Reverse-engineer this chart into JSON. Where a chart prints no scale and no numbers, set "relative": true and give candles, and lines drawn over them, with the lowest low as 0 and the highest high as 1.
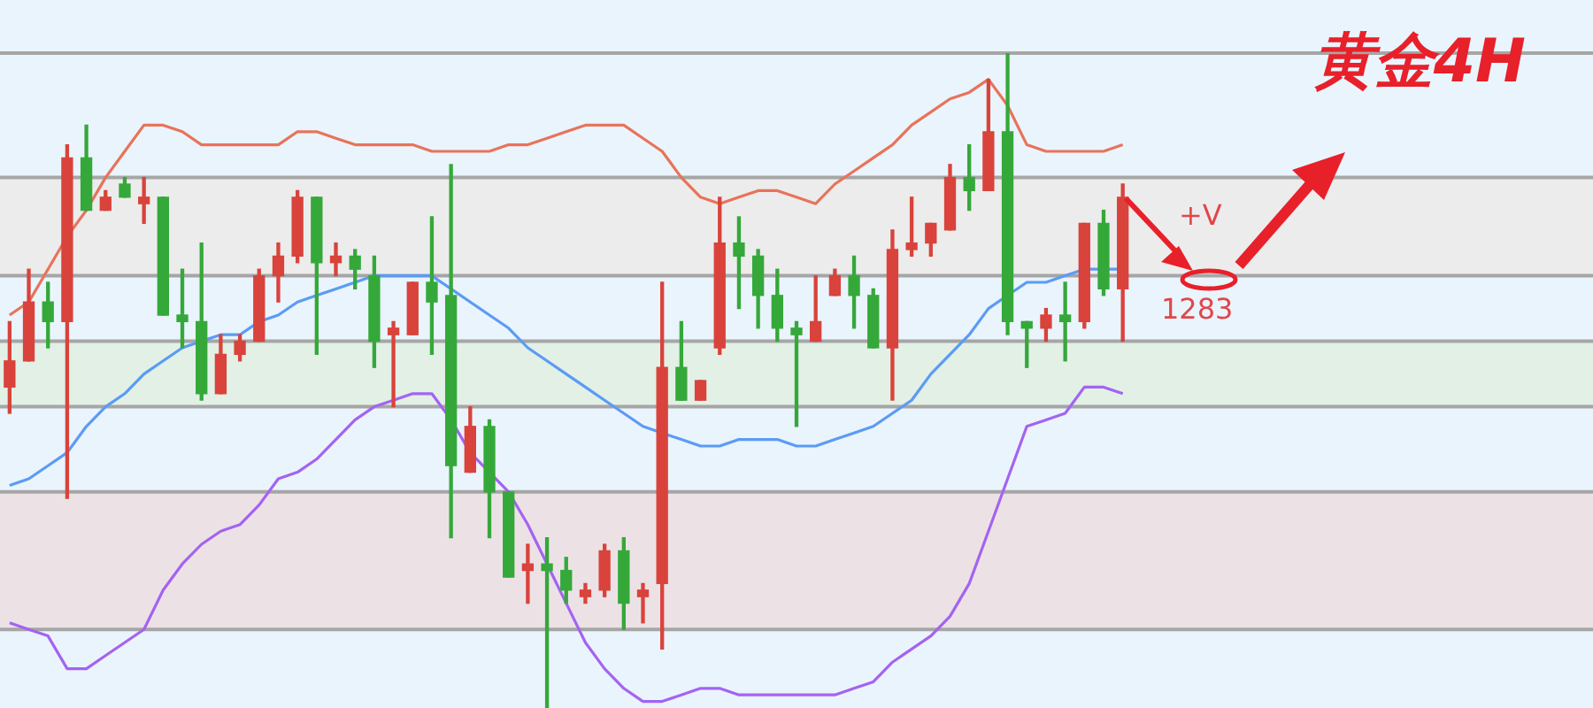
{
  "chart_data": {
    "type": "candlestick",
    "title": "黄金4H",
    "relative": true,
    "legend": false,
    "marker": "none",
    "line_style": "solid",
    "categories": [
      null,
      null,
      null,
      null,
      null,
      null,
      null,
      null,
      null,
      null,
      null,
      null,
      null,
      null,
      null,
      null,
      null,
      null,
      null,
      null,
      null,
      null,
      null,
      null,
      null,
      null,
      null,
      null,
      null,
      null,
      null,
      null,
      null,
      null,
      null,
      null,
      null,
      null,
      null,
      null,
      null,
      null,
      null,
      null,
      null,
      null,
      null,
      null,
      null,
      null,
      null,
      null,
      null,
      null,
      null,
      null,
      null,
      null,
      null,
      null,
      null,
      null,
      null,
      null,
      null,
      null,
      null,
      null,
      null,
      null,
      null,
      null,
      null,
      null,
      null,
      null,
      null,
      null,
      null,
      null,
      null,
      null,
      null
    ],
    "ohlc": [
      [
        0.49,
        0.59,
        0.45,
        0.53
      ],
      [
        0.53,
        0.67,
        0.53,
        0.62
      ],
      [
        0.62,
        0.65,
        0.55,
        0.59
      ],
      [
        0.59,
        0.86,
        0.32,
        0.84
      ],
      [
        0.84,
        0.89,
        0.76,
        0.76
      ],
      [
        0.76,
        0.79,
        0.76,
        0.78
      ],
      [
        0.8,
        0.81,
        0.78,
        0.78
      ],
      [
        0.77,
        0.81,
        0.74,
        0.78
      ],
      [
        0.78,
        0.78,
        0.6,
        0.6
      ],
      [
        0.6,
        0.67,
        0.55,
        0.59
      ],
      [
        0.59,
        0.71,
        0.47,
        0.48
      ],
      [
        0.48,
        0.57,
        0.48,
        0.54
      ],
      [
        0.54,
        0.57,
        0.53,
        0.56
      ],
      [
        0.56,
        0.67,
        0.56,
        0.66
      ],
      [
        0.66,
        0.71,
        0.62,
        0.69
      ],
      [
        0.69,
        0.79,
        0.68,
        0.78
      ],
      [
        0.78,
        0.78,
        0.54,
        0.68
      ],
      [
        0.68,
        0.71,
        0.66,
        0.69
      ],
      [
        0.69,
        0.7,
        0.64,
        0.67
      ],
      [
        0.66,
        0.69,
        0.52,
        0.56
      ],
      [
        0.57,
        0.59,
        0.46,
        0.58
      ],
      [
        0.57,
        0.65,
        0.57,
        0.65
      ],
      [
        0.65,
        0.75,
        0.54,
        0.62
      ],
      [
        0.63,
        0.83,
        0.26,
        0.37
      ],
      [
        0.36,
        0.46,
        0.36,
        0.43
      ],
      [
        0.43,
        0.44,
        0.26,
        0.33
      ],
      [
        0.33,
        0.33,
        0.2,
        0.2
      ],
      [
        0.21,
        0.25,
        0.16,
        0.22
      ],
      [
        0.22,
        0.26,
        0,
        0.21
      ],
      [
        0.21,
        0.23,
        0.16,
        0.18
      ],
      [
        0.17,
        0.19,
        0.16,
        0.18
      ],
      [
        0.18,
        0.25,
        0.17,
        0.24
      ],
      [
        0.24,
        0.26,
        0.12,
        0.16
      ],
      [
        0.17,
        0.19,
        0.13,
        0.18
      ],
      [
        0.19,
        0.65,
        0.09,
        0.52
      ],
      [
        0.52,
        0.59,
        0.47,
        0.47
      ],
      [
        0.47,
        0.5,
        0.47,
        0.5
      ],
      [
        0.55,
        0.78,
        0.54,
        0.71
      ],
      [
        0.71,
        0.75,
        0.61,
        0.69
      ],
      [
        0.69,
        0.7,
        0.58,
        0.63
      ],
      [
        0.63,
        0.67,
        0.56,
        0.58
      ],
      [
        0.58,
        0.59,
        0.43,
        0.57
      ],
      [
        0.56,
        0.66,
        0.56,
        0.59
      ],
      [
        0.63,
        0.67,
        0.63,
        0.66
      ],
      [
        0.66,
        0.69,
        0.58,
        0.63
      ],
      [
        0.63,
        0.64,
        0.55,
        0.55
      ],
      [
        0.55,
        0.73,
        0.47,
        0.7
      ],
      [
        0.7,
        0.78,
        0.69,
        0.71
      ],
      [
        0.71,
        0.74,
        0.69,
        0.74
      ],
      [
        0.73,
        0.83,
        0.73,
        0.81
      ],
      [
        0.81,
        0.86,
        0.76,
        0.79
      ],
      [
        0.79,
        0.96,
        0.79,
        0.88
      ],
      [
        0.88,
        1,
        0.57,
        0.59
      ],
      [
        0.59,
        0.59,
        0.52,
        0.58
      ],
      [
        0.58,
        0.61,
        0.56,
        0.6
      ],
      [
        0.6,
        0.65,
        0.53,
        0.59
      ],
      [
        0.59,
        0.74,
        0.58,
        0.74
      ],
      [
        0.74,
        0.76,
        0.63,
        0.64
      ],
      [
        0.64,
        0.8,
        0.56,
        0.78
      ],
      null,
      null,
      null,
      null,
      null,
      null,
      null,
      null,
      null,
      null,
      null,
      null,
      null,
      null,
      null,
      null,
      null,
      null,
      null,
      null,
      null,
      null,
      null,
      null
    ],
    "series": [
      {
        "type": "line",
        "color": "#e8735a",
        "values": [
          0.6,
          0.62,
          0.67,
          0.72,
          0.76,
          0.81,
          0.85,
          0.89,
          0.89,
          0.88,
          0.86,
          0.86,
          0.86,
          0.86,
          0.86,
          0.88,
          0.88,
          0.87,
          0.86,
          0.86,
          0.86,
          0.86,
          0.85,
          0.85,
          0.85,
          0.85,
          0.86,
          0.86,
          0.87,
          0.88,
          0.89,
          0.89,
          0.89,
          0.87,
          0.85,
          0.81,
          0.78,
          0.77,
          0.78,
          0.79,
          0.79,
          0.78,
          0.77,
          0.8,
          0.82,
          0.84,
          0.86,
          0.89,
          0.91,
          0.93,
          0.94,
          0.96,
          0.92,
          0.86,
          0.85,
          0.85,
          0.85,
          0.85,
          0.86,
          null,
          null,
          null,
          null,
          null,
          null,
          null,
          null,
          null,
          null,
          null,
          null,
          null,
          null,
          null,
          null,
          null,
          null,
          null,
          null,
          null,
          null,
          null,
          null
        ]
      },
      {
        "type": "line",
        "color": "#5b9bf5",
        "values": [
          0.34,
          0.35,
          0.37,
          0.39,
          0.43,
          0.46,
          0.48,
          0.51,
          0.53,
          0.55,
          0.56,
          0.57,
          0.57,
          0.59,
          0.6,
          0.62,
          0.63,
          0.64,
          0.65,
          0.66,
          0.66,
          0.66,
          0.66,
          0.64,
          0.62,
          0.6,
          0.58,
          0.55,
          0.53,
          0.51,
          0.49,
          0.47,
          0.45,
          0.43,
          0.42,
          0.41,
          0.4,
          0.4,
          0.41,
          0.41,
          0.41,
          0.4,
          0.4,
          0.41,
          0.42,
          0.43,
          0.45,
          0.47,
          0.51,
          0.54,
          0.57,
          0.61,
          0.63,
          0.65,
          0.65,
          0.66,
          0.67,
          0.67,
          0.67,
          null,
          null,
          null,
          null,
          null,
          null,
          null,
          null,
          null,
          null,
          null,
          null,
          null,
          null,
          null,
          null,
          null,
          null,
          null,
          null,
          null,
          null,
          null,
          null
        ]
      },
      {
        "type": "line",
        "color": "#a463f2",
        "values": [
          0.13,
          0.12,
          0.11,
          0.06,
          0.06,
          0.08,
          0.1,
          0.12,
          0.18,
          0.22,
          0.25,
          0.27,
          0.28,
          0.31,
          0.35,
          0.36,
          0.38,
          0.41,
          0.44,
          0.46,
          0.47,
          0.48,
          0.48,
          0.44,
          0.39,
          0.36,
          0.33,
          0.28,
          0.22,
          0.16,
          0.1,
          0.06,
          0.03,
          0.01,
          0.01,
          0.02,
          0.03,
          0.03,
          0.02,
          0.02,
          0.02,
          0.02,
          0.02,
          0.02,
          0.03,
          0.04,
          0.07,
          0.09,
          0.11,
          0.14,
          0.19,
          0.27,
          0.35,
          0.43,
          0.44,
          0.45,
          0.49,
          0.49,
          0.48,
          null,
          null,
          null,
          null,
          null,
          null,
          null,
          null,
          null,
          null,
          null,
          null,
          null,
          null,
          null,
          null,
          null,
          null,
          null,
          null,
          null,
          null,
          null,
          null
        ]
      }
    ],
    "bands": [
      {
        "axis": "y",
        "from": 0.66,
        "to": 0.81,
        "color": "#ececec"
      },
      {
        "axis": "y",
        "from": 0.46,
        "to": 0.56,
        "color": "#e2f0e6"
      },
      {
        "axis": "y",
        "from": 0.12,
        "to": 0.33,
        "color": "#ece2e6"
      }
    ],
    "ref_lines": [
      {
        "axis": "y",
        "value": 1,
        "color": "#a6a6a6"
      },
      {
        "axis": "y",
        "value": 0.81,
        "color": "#a6a6a6"
      },
      {
        "axis": "y",
        "value": 0.66,
        "color": "#a6a6a6"
      },
      {
        "axis": "y",
        "value": 0.56,
        "color": "#a6a6a6"
      },
      {
        "axis": "y",
        "value": 0.46,
        "color": "#a6a6a6"
      },
      {
        "axis": "y",
        "value": 0.33,
        "color": "#a6a6a6"
      },
      {
        "axis": "y",
        "value": 0.12,
        "color": "#a6a6a6"
      }
    ],
    "annotations": [
      "+V",
      "1283"
    ]
  }
}
